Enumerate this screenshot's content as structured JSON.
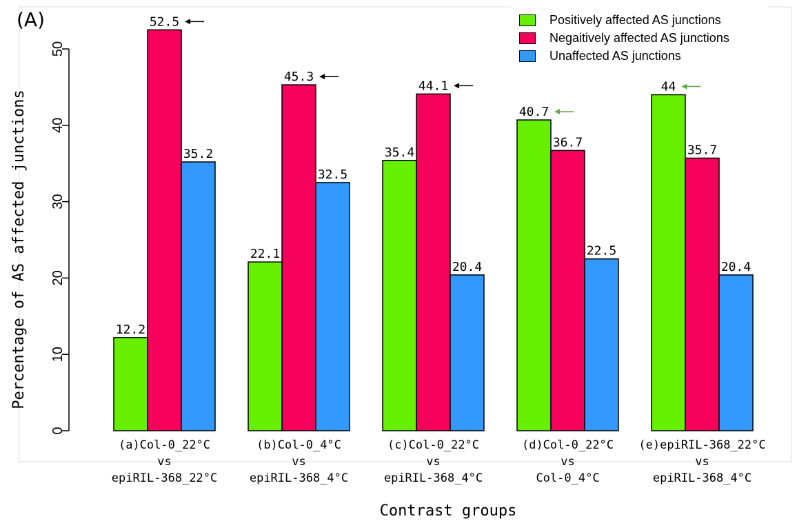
{
  "panel_label": "(A)",
  "chart_data": {
    "type": "bar",
    "xlabel": "Contrast groups",
    "ylabel": "Percentage of AS affected junctions",
    "ylim": [
      0,
      55
    ],
    "yticks": [
      "0",
      "10",
      "20",
      "30",
      "40",
      "50"
    ],
    "categories": [
      [
        "(a)Col-0_22°C",
        "vs",
        "epiRIL-368_22°C"
      ],
      [
        "(b)Col-0_4°C",
        "vs",
        "epiRIL-368_4°C"
      ],
      [
        "(c)Col-0_22°C",
        "vs",
        "epiRIL-368_4°C"
      ],
      [
        "(d)Col-0_22°C",
        "vs",
        "Col-0_4°C"
      ],
      [
        "(e)epiRIL-368_22°C",
        "vs",
        "epiRIL-368_4°C"
      ]
    ],
    "series": [
      {
        "name": "Positively affected AS junctions",
        "color": "#66f000",
        "values": [
          12.2,
          22.1,
          35.4,
          40.7,
          44
        ],
        "labels": [
          "12.2",
          "22.1",
          "35.4",
          "40.7",
          "44"
        ]
      },
      {
        "name": "Negaitively affected AS junctions",
        "color": "#f5005a",
        "values": [
          52.5,
          45.3,
          44.1,
          36.7,
          35.7
        ],
        "labels": [
          "52.5",
          "45.3",
          "44.1",
          "36.7",
          "35.7"
        ]
      },
      {
        "name": "Unaffected AS junctions",
        "color": "#3399ff",
        "values": [
          35.2,
          32.5,
          20.4,
          22.5,
          20.4
        ],
        "labels": [
          "35.2",
          "32.5",
          "20.4",
          "22.5",
          "20.4"
        ]
      }
    ],
    "annotations": [
      {
        "type": "arrow",
        "category_index": 0,
        "series_index": 1,
        "color": "#000000"
      },
      {
        "type": "arrow",
        "category_index": 1,
        "series_index": 1,
        "color": "#000000"
      },
      {
        "type": "arrow",
        "category_index": 2,
        "series_index": 1,
        "color": "#000000"
      },
      {
        "type": "arrow",
        "category_index": 3,
        "series_index": 0,
        "color": "#6aa84f"
      },
      {
        "type": "arrow",
        "category_index": 4,
        "series_index": 0,
        "color": "#6aa84f"
      }
    ],
    "legend_position": "top-right",
    "grid": false
  }
}
